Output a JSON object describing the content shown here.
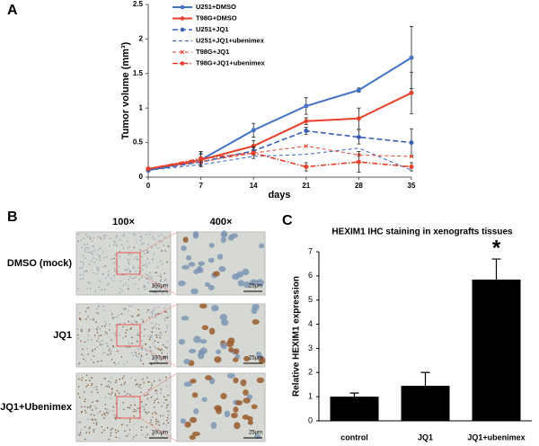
{
  "chart_data": [
    {
      "type": "line",
      "label": "A",
      "ylabel": "Tumor volume (mm³)",
      "xlabel": "days",
      "x": [
        0,
        7,
        14,
        21,
        28,
        35
      ],
      "xlim": [
        0,
        35
      ],
      "xticks": [
        0,
        7,
        14,
        21,
        28,
        35
      ],
      "ylim": [
        0,
        2.5
      ],
      "yticks": [
        0,
        0.5,
        1,
        1.5,
        2,
        2.5
      ],
      "series": [
        {
          "name": "U251+DMSO",
          "color": "#4472c4",
          "style": "solid",
          "marker": "circle",
          "values": [
            0.1,
            0.25,
            0.68,
            1.03,
            1.26,
            1.73
          ],
          "errors": [
            0.02,
            0.1,
            0.1,
            0.12,
            0.03,
            0.45
          ]
        },
        {
          "name": "T98G+DMSO",
          "color": "#e8412b",
          "style": "solid",
          "marker": "circle",
          "values": [
            0.12,
            0.25,
            0.45,
            0.81,
            0.85,
            1.22
          ],
          "errors": [
            0.02,
            0.08,
            0.08,
            0.05,
            0.15,
            0.3
          ]
        },
        {
          "name": "U251+JQ1",
          "color": "#3a5fb8",
          "style": "dashed",
          "marker": "circle",
          "values": [
            0.1,
            0.22,
            0.38,
            0.67,
            0.58,
            0.5
          ],
          "errors": [
            0.02,
            0.05,
            0.06,
            0.05,
            0.1,
            0.2
          ]
        },
        {
          "name": "U251+JQ1+ubenimex",
          "color": "#3a5fb8",
          "style": "dashed-thin",
          "marker": "none",
          "values": [
            0.1,
            0.18,
            0.3,
            0.33,
            0.42,
            0.1
          ]
        },
        {
          "name": "T98G+JQ1",
          "color": "#e8412b",
          "style": "dashed-thin",
          "marker": "x",
          "values": [
            0.12,
            0.22,
            0.35,
            0.45,
            0.32,
            0.3
          ]
        },
        {
          "name": "T98G+JQ1+ubenimex",
          "color": "#e8412b",
          "style": "dashdot",
          "marker": "circle",
          "values": [
            0.12,
            0.27,
            0.35,
            0.15,
            0.22,
            0.15
          ],
          "errors": [
            0.02,
            0.1,
            0.08,
            0.06,
            0.15,
            0.06
          ]
        }
      ]
    },
    {
      "type": "bar",
      "label": "C",
      "title": "HEXIM1 IHC staining in xenografts tissues",
      "ylabel": "Relative HEXIM1 expression",
      "categories": [
        "control",
        "JQ1",
        "JQ1+ubenimex"
      ],
      "values": [
        1.0,
        1.45,
        5.85
      ],
      "errors": [
        0.15,
        0.55,
        0.85
      ],
      "color": "#000000",
      "ylim": [
        0,
        7
      ],
      "yticks": [
        0,
        1,
        2,
        3,
        4,
        5,
        6,
        7
      ],
      "annotation": "*"
    }
  ],
  "panel_b": {
    "label": "B",
    "columns": [
      "100×",
      "400×"
    ],
    "rows": [
      {
        "label": "DMSO (mock)",
        "scale_bars": [
          "100μm",
          "25μm"
        ]
      },
      {
        "label": "JQ1",
        "scale_bars": [
          "100μm",
          "25μm"
        ]
      },
      {
        "label": "JQ1+Ubenimex",
        "scale_bars": [
          "100μm",
          "25μm"
        ]
      }
    ]
  }
}
